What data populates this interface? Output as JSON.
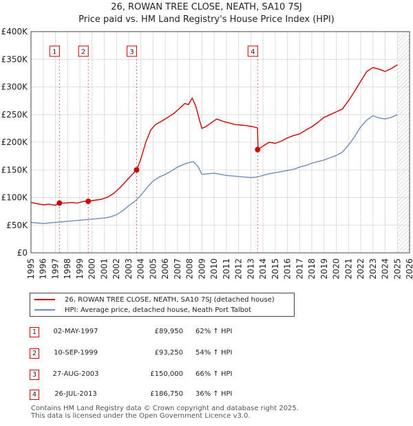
{
  "header": {
    "title_line1": "26, ROWAN TREE CLOSE, NEATH, SA10 7SJ",
    "title_line2": "Price paid vs. HM Land Registry's House Price Index (HPI)"
  },
  "legend": {
    "entries": [
      {
        "label": "26, ROWAN TREE CLOSE, NEATH, SA10 7SJ (detached house)",
        "color": "#cc0000"
      },
      {
        "label": "HPI: Average price, detached house, Neath Port Talbot",
        "color": "#6c8ebf"
      }
    ]
  },
  "sales_table": [
    {
      "num": "1",
      "date": "02-MAY-1997",
      "price": "£89,950",
      "hpi": "62% ↑ HPI"
    },
    {
      "num": "2",
      "date": "10-SEP-1999",
      "price": "£93,250",
      "hpi": "54% ↑ HPI"
    },
    {
      "num": "3",
      "date": "27-AUG-2003",
      "price": "£150,000",
      "hpi": "66% ↑ HPI"
    },
    {
      "num": "4",
      "date": "26-JUL-2013",
      "price": "£186,750",
      "hpi": "36% ↑ HPI"
    }
  ],
  "footer": {
    "line1": "Contains HM Land Registry data © Crown copyright and database right 2025.",
    "line2": "This data is licensed under the Open Government Licence v3.0."
  },
  "chart_data": {
    "type": "line",
    "title": "26, ROWAN TREE CLOSE, NEATH, SA10 7SJ",
    "subtitle": "Price paid vs. HM Land Registry's House Price Index (HPI)",
    "xlabel": "",
    "ylabel": "",
    "xlim": [
      1995,
      2026
    ],
    "ylim": [
      0,
      400000
    ],
    "x_ticks": [
      1995,
      1996,
      1997,
      1998,
      1999,
      2000,
      2001,
      2002,
      2003,
      2004,
      2005,
      2006,
      2007,
      2008,
      2009,
      2010,
      2011,
      2012,
      2013,
      2014,
      2015,
      2016,
      2017,
      2018,
      2019,
      2020,
      2021,
      2022,
      2023,
      2024,
      2025,
      2026
    ],
    "y_ticks": [
      {
        "value": 0,
        "label": "£0"
      },
      {
        "value": 50000,
        "label": "£50K"
      },
      {
        "value": 100000,
        "label": "£100K"
      },
      {
        "value": 150000,
        "label": "£150K"
      },
      {
        "value": 200000,
        "label": "£200K"
      },
      {
        "value": 250000,
        "label": "£250K"
      },
      {
        "value": 300000,
        "label": "£300K"
      },
      {
        "value": 350000,
        "label": "£350K"
      },
      {
        "value": 400000,
        "label": "£400K"
      }
    ],
    "grid": true,
    "shade_future_from": 2025.0,
    "series": [
      {
        "name": "26, ROWAN TREE CLOSE, NEATH, SA10 7SJ (detached house)",
        "color": "#cc0000",
        "x": [
          1995.0,
          1995.5,
          1996.0,
          1996.5,
          1997.0,
          1997.33,
          1997.8,
          1998.3,
          1998.8,
          1999.3,
          1999.69,
          2000.2,
          2000.8,
          2001.3,
          2001.8,
          2002.3,
          2002.8,
          2003.3,
          2003.65,
          2004.0,
          2004.4,
          2004.8,
          2005.2,
          2005.7,
          2006.2,
          2006.7,
          2007.2,
          2007.6,
          2007.9,
          2008.2,
          2008.5,
          2008.8,
          2009.0,
          2009.3,
          2009.7,
          2010.2,
          2010.7,
          2011.2,
          2011.7,
          2012.2,
          2012.7,
          2013.2,
          2013.55,
          2013.6,
          2014.0,
          2014.5,
          2015.0,
          2015.5,
          2016.0,
          2016.5,
          2017.0,
          2017.5,
          2018.0,
          2018.5,
          2019.0,
          2019.5,
          2020.0,
          2020.5,
          2021.0,
          2021.5,
          2022.0,
          2022.5,
          2023.0,
          2023.5,
          2024.0,
          2024.5,
          2025.0
        ],
        "values": [
          91000,
          89000,
          87000,
          88000,
          86000,
          89950,
          90000,
          91000,
          90000,
          93000,
          93250,
          95000,
          97000,
          101000,
          108000,
          118000,
          130000,
          142000,
          150000,
          170000,
          200000,
          222000,
          232000,
          238000,
          245000,
          252000,
          262000,
          270000,
          268000,
          280000,
          265000,
          240000,
          225000,
          228000,
          234000,
          242000,
          238000,
          235000,
          232000,
          231000,
          230000,
          228000,
          226000,
          186750,
          193000,
          200000,
          198000,
          202000,
          208000,
          212000,
          215000,
          222000,
          228000,
          236000,
          245000,
          250000,
          255000,
          260000,
          275000,
          292000,
          310000,
          328000,
          335000,
          332000,
          328000,
          333000,
          340000
        ]
      },
      {
        "name": "HPI: Average price, detached house, Neath Port Talbot",
        "color": "#6c8ebf",
        "x": [
          1995.0,
          1995.5,
          1996.0,
          1996.5,
          1997.0,
          1997.5,
          1998.0,
          1998.5,
          1999.0,
          1999.5,
          2000.0,
          2000.5,
          2001.0,
          2001.5,
          2002.0,
          2002.5,
          2003.0,
          2003.5,
          2004.0,
          2004.5,
          2005.0,
          2005.5,
          2006.0,
          2006.5,
          2007.0,
          2007.5,
          2007.9,
          2008.3,
          2008.7,
          2009.0,
          2009.5,
          2010.0,
          2010.5,
          2011.0,
          2011.5,
          2012.0,
          2012.5,
          2013.0,
          2013.5,
          2014.0,
          2014.5,
          2015.0,
          2015.5,
          2016.0,
          2016.5,
          2017.0,
          2017.5,
          2018.0,
          2018.5,
          2019.0,
          2019.5,
          2020.0,
          2020.5,
          2021.0,
          2021.5,
          2022.0,
          2022.5,
          2023.0,
          2023.5,
          2024.0,
          2024.5,
          2025.0
        ],
        "values": [
          55000,
          54000,
          53000,
          54000,
          55000,
          56000,
          57000,
          58000,
          59000,
          60000,
          61000,
          62000,
          63000,
          65000,
          69000,
          76000,
          85000,
          93000,
          104000,
          118000,
          130000,
          137000,
          142000,
          148000,
          155000,
          160000,
          163000,
          165000,
          155000,
          142000,
          143000,
          144000,
          142000,
          140000,
          139000,
          138000,
          137000,
          136000,
          137000,
          140000,
          143000,
          145000,
          147000,
          149000,
          151000,
          155000,
          158000,
          162000,
          165000,
          168000,
          172000,
          176000,
          182000,
          195000,
          210000,
          228000,
          240000,
          248000,
          244000,
          242000,
          245000,
          250000
        ]
      }
    ],
    "sale_markers": [
      {
        "label": "1",
        "x": 1997.33,
        "value": 89950
      },
      {
        "label": "2",
        "x": 1999.69,
        "value": 93250
      },
      {
        "label": "3",
        "x": 2003.65,
        "value": 150000
      },
      {
        "label": "4",
        "x": 2013.56,
        "value": 186750
      }
    ]
  }
}
